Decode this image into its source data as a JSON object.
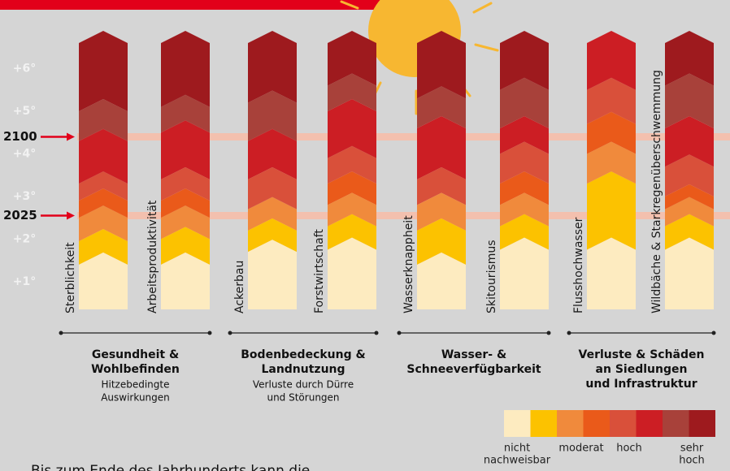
{
  "chart_data": {
    "type": "ember",
    "ylim": [
      0.35,
      6.6
    ],
    "yticks": [
      {
        "value": 1,
        "label": "+1°"
      },
      {
        "value": 2,
        "label": "+2°"
      },
      {
        "value": 3,
        "label": "+3°"
      },
      {
        "value": 4,
        "label": "+4°"
      },
      {
        "value": 5,
        "label": "+5°"
      },
      {
        "value": 6,
        "label": "+6°"
      }
    ],
    "markers": [
      {
        "label": "2100",
        "value": 4.4
      },
      {
        "label": "2025",
        "value": 2.55
      }
    ],
    "colors": [
      "#fdebc0",
      "#fcc200",
      "#f08a3c",
      "#ea5a1a",
      "#d9503a",
      "#cc1e24",
      "#a8413a",
      "#9e1a1e"
    ],
    "columns": [
      {
        "name": "Sterblichkeit",
        "segments": [
          {
            "level": 0,
            "from": 0.35,
            "to": 1.4
          },
          {
            "level": 1,
            "from": 1.4,
            "to": 1.95
          },
          {
            "level": 2,
            "from": 1.95,
            "to": 2.5
          },
          {
            "level": 3,
            "from": 2.5,
            "to": 2.9
          },
          {
            "level": 4,
            "from": 2.9,
            "to": 3.3
          },
          {
            "level": 5,
            "from": 3.3,
            "to": 4.3
          },
          {
            "level": 6,
            "from": 4.3,
            "to": 5.0
          },
          {
            "level": 7,
            "from": 5.0,
            "to": 6.6
          }
        ]
      },
      {
        "name": "Arbeitsproduktivität",
        "segments": [
          {
            "level": 0,
            "from": 0.35,
            "to": 1.4
          },
          {
            "level": 1,
            "from": 1.4,
            "to": 2.0
          },
          {
            "level": 2,
            "from": 2.0,
            "to": 2.5
          },
          {
            "level": 3,
            "from": 2.5,
            "to": 2.9
          },
          {
            "level": 4,
            "from": 2.9,
            "to": 3.4
          },
          {
            "level": 5,
            "from": 3.4,
            "to": 4.5
          },
          {
            "level": 6,
            "from": 4.5,
            "to": 5.1
          },
          {
            "level": 7,
            "from": 5.1,
            "to": 6.6
          }
        ]
      },
      {
        "name": "Ackerbau",
        "segments": [
          {
            "level": 0,
            "from": 0.35,
            "to": 1.7
          },
          {
            "level": 1,
            "from": 1.7,
            "to": 2.2
          },
          {
            "level": 2,
            "from": 2.2,
            "to": 2.7
          },
          {
            "level": 4,
            "from": 2.7,
            "to": 3.4
          },
          {
            "level": 5,
            "from": 3.4,
            "to": 4.3
          },
          {
            "level": 6,
            "from": 4.3,
            "to": 5.2
          },
          {
            "level": 7,
            "from": 5.2,
            "to": 6.6
          }
        ]
      },
      {
        "name": "Forstwirtschaft",
        "segments": [
          {
            "level": 0,
            "from": 0.35,
            "to": 1.75
          },
          {
            "level": 1,
            "from": 1.75,
            "to": 2.3
          },
          {
            "level": 2,
            "from": 2.3,
            "to": 2.8
          },
          {
            "level": 3,
            "from": 2.8,
            "to": 3.3
          },
          {
            "level": 4,
            "from": 3.3,
            "to": 3.9
          },
          {
            "level": 5,
            "from": 3.9,
            "to": 5.0
          },
          {
            "level": 6,
            "from": 5.0,
            "to": 5.6
          },
          {
            "level": 7,
            "from": 5.6,
            "to": 6.6
          }
        ]
      },
      {
        "name": "Wasserknappheit",
        "segments": [
          {
            "level": 0,
            "from": 0.35,
            "to": 1.4
          },
          {
            "level": 1,
            "from": 1.4,
            "to": 2.2
          },
          {
            "level": 2,
            "from": 2.2,
            "to": 2.8
          },
          {
            "level": 4,
            "from": 2.8,
            "to": 3.4
          },
          {
            "level": 5,
            "from": 3.4,
            "to": 4.6
          },
          {
            "level": 6,
            "from": 4.6,
            "to": 5.3
          },
          {
            "level": 7,
            "from": 5.3,
            "to": 6.6
          }
        ]
      },
      {
        "name": "Skitourismus",
        "segments": [
          {
            "level": 0,
            "from": 0.35,
            "to": 1.75
          },
          {
            "level": 1,
            "from": 1.75,
            "to": 2.3
          },
          {
            "level": 2,
            "from": 2.3,
            "to": 2.8
          },
          {
            "level": 3,
            "from": 2.8,
            "to": 3.3
          },
          {
            "level": 4,
            "from": 3.3,
            "to": 4.0
          },
          {
            "level": 5,
            "from": 4.0,
            "to": 4.6
          },
          {
            "level": 6,
            "from": 4.6,
            "to": 5.5
          },
          {
            "level": 7,
            "from": 5.5,
            "to": 6.6
          }
        ]
      },
      {
        "name": "Flusshochwasser",
        "segments": [
          {
            "level": 0,
            "from": 0.35,
            "to": 1.75
          },
          {
            "level": 1,
            "from": 1.75,
            "to": 3.3
          },
          {
            "level": 2,
            "from": 3.3,
            "to": 4.0
          },
          {
            "level": 3,
            "from": 4.0,
            "to": 4.7
          },
          {
            "level": 4,
            "from": 4.7,
            "to": 5.5
          },
          {
            "level": 5,
            "from": 5.5,
            "to": 6.6
          }
        ]
      },
      {
        "name": "Wildbäche & Starkregenüberschwemmung",
        "segments": [
          {
            "level": 0,
            "from": 0.35,
            "to": 1.75
          },
          {
            "level": 1,
            "from": 1.75,
            "to": 2.3
          },
          {
            "level": 2,
            "from": 2.3,
            "to": 2.7
          },
          {
            "level": 3,
            "from": 2.7,
            "to": 3.0
          },
          {
            "level": 4,
            "from": 3.0,
            "to": 3.7
          },
          {
            "level": 5,
            "from": 3.7,
            "to": 4.6
          },
          {
            "level": 6,
            "from": 4.6,
            "to": 5.6
          },
          {
            "level": 7,
            "from": 5.6,
            "to": 6.6
          }
        ]
      }
    ],
    "groups": [
      {
        "title": [
          "Gesundheit &",
          "Wohlbefinden"
        ],
        "subtitle": [
          "Hitzebedingte",
          "Auswirkungen"
        ]
      },
      {
        "title": [
          "Bodenbedeckung &",
          "Landnutzung"
        ],
        "subtitle": [
          "Verluste durch Dürre",
          "und Störungen"
        ]
      },
      {
        "title": [
          "Wasser- &",
          "Schneeverfügbarkeit"
        ]
      },
      {
        "title": [
          "Verluste & Schäden",
          "an Siedlungen",
          "und Infrastruktur"
        ]
      }
    ],
    "legend": [
      {
        "lines": [
          "nicht",
          "nachweisbar"
        ]
      },
      {
        "lines": [
          "moderat"
        ]
      },
      {
        "lines": [
          "hoch"
        ]
      },
      {
        "lines": [
          "sehr",
          "hoch"
        ]
      }
    ],
    "footer": "Bis zum Ende des Jahrhunderts kann die"
  }
}
